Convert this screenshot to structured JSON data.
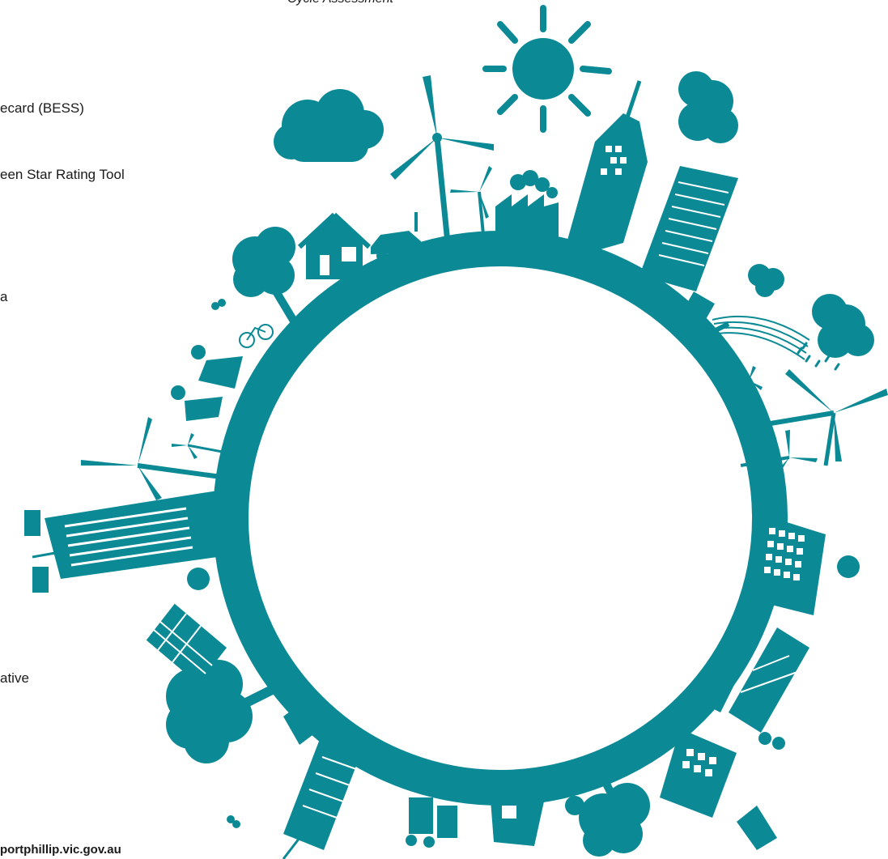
{
  "texts": {
    "cycle_assessment": "Cycle Assessment",
    "bess": "ecard (BESS)",
    "green_star": "een Star Rating Tool",
    "a": "a",
    "ative": "ative",
    "url": "portphillip.vic.gov.au"
  },
  "colors": {
    "teal": "#0b8a96",
    "text": "#1a1a1a",
    "background": "#ffffff"
  },
  "icons": [
    "sun-icon",
    "cloud-icon",
    "wind-turbine-icon",
    "house-icon",
    "car-icon",
    "factory-icon",
    "skyscraper-icon",
    "tree-icon",
    "bicycle-icon",
    "people-icon",
    "solar-panel-icon",
    "rain-cloud-icon",
    "butterfly-icon",
    "water-tap-icon"
  ]
}
